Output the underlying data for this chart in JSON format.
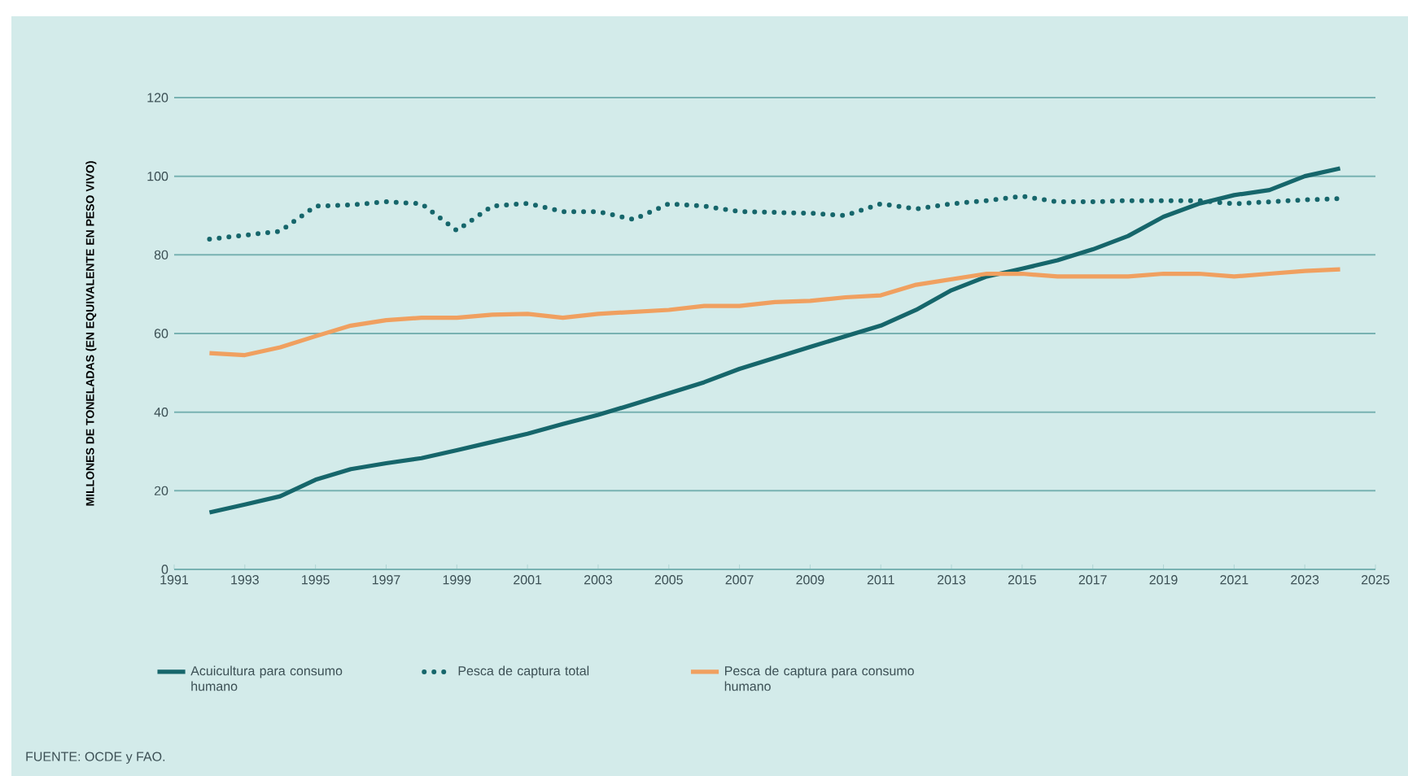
{
  "chart_data": {
    "type": "line",
    "ylabel": "MILLONES DE TONELADAS (EN EQUIVALENTE EN PESO VIVO)",
    "annotations": [
      "FUENTE: OCDE y FAO."
    ],
    "x": [
      1992,
      1993,
      1994,
      1995,
      1996,
      1997,
      1998,
      1999,
      2000,
      2001,
      2002,
      2003,
      2004,
      2005,
      2006,
      2007,
      2008,
      2009,
      2010,
      2011,
      2012,
      2013,
      2014,
      2015,
      2016,
      2017,
      2018,
      2019,
      2020,
      2021,
      2022,
      2023,
      2024
    ],
    "series": [
      {
        "name": "Acuicultura para consumo humano",
        "color": "#16666b",
        "line_style": "solid",
        "values": [
          14.5,
          16.5,
          18.6,
          22.8,
          25.5,
          27,
          28.3,
          30.3,
          32.4,
          34.5,
          37,
          39.3,
          42,
          44.8,
          47.6,
          51,
          53.8,
          56.6,
          59.3,
          62,
          66,
          71,
          74.5,
          76.5,
          78.6,
          81.4,
          84.8,
          89.7,
          93,
          95.2,
          96.5,
          100,
          102
        ]
      },
      {
        "name": "Pesca de captura total",
        "color": "#16666b",
        "line_style": "dotted",
        "values": [
          84,
          85,
          86,
          92.4,
          92.7,
          93.5,
          93,
          86.2,
          92.4,
          93.1,
          91,
          91,
          89,
          93,
          92.4,
          91,
          90.8,
          90.6,
          90,
          93,
          91.7,
          93,
          93.8,
          94.9,
          93.5,
          93.5,
          93.8,
          93.8,
          93.8,
          93,
          93.5,
          94,
          94.3
        ]
      },
      {
        "name": "Pesca de captura para consumo humano",
        "color": "#f0a060",
        "line_style": "solid",
        "values": [
          55,
          54.5,
          56.5,
          59.3,
          62,
          63.4,
          64,
          64,
          64.8,
          65,
          64,
          65,
          65.5,
          66,
          67,
          67,
          68,
          68.3,
          69.2,
          69.7,
          72.4,
          73.8,
          75.2,
          75.2,
          74.5,
          74.5,
          74.5,
          75.2,
          75.2,
          74.5,
          75.2,
          75.9,
          76.3
        ]
      }
    ],
    "xlim": [
      1991,
      2025
    ],
    "ylim": [
      0,
      120
    ],
    "xticks": [
      1991,
      1993,
      1995,
      1997,
      1999,
      2001,
      2003,
      2005,
      2007,
      2009,
      2011,
      2013,
      2015,
      2017,
      2019,
      2021,
      2023,
      2025
    ],
    "yticks": [
      0,
      20,
      40,
      60,
      80,
      100,
      120
    ],
    "grid": "y",
    "legend": "bottom",
    "marker": "none"
  }
}
